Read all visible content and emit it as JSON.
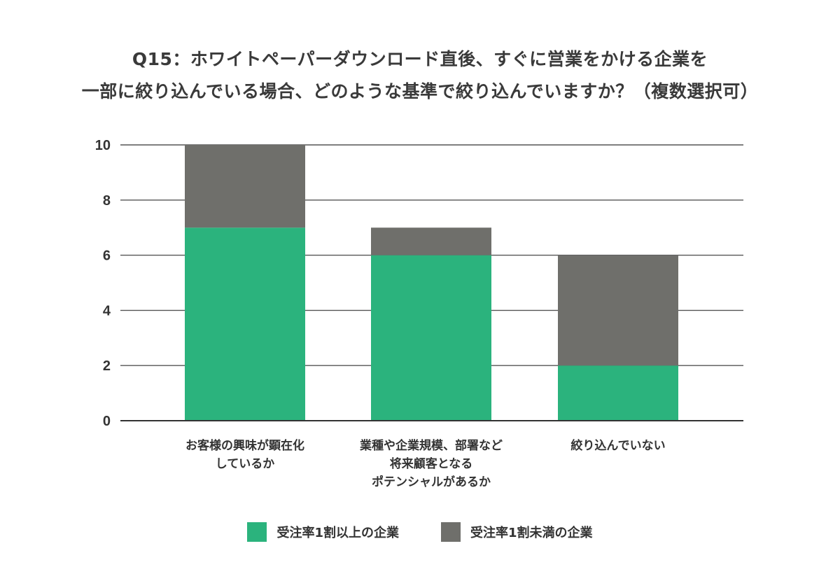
{
  "chart_data": {
    "type": "bar",
    "stacked": true,
    "title": [
      "Q15：ホワイトペーパーダウンロード直後、すぐに営業をかける企業を",
      "一部に絞り込んでいる場合、どのような基準で絞り込んでいますか？（複数選択可）"
    ],
    "categories": [
      [
        "お客様の興味が顕在化",
        "しているか"
      ],
      [
        "業種や企業規模、部署など",
        "将来顧客となる",
        "ポテンシャルがあるか"
      ],
      [
        "絞り込んでいない"
      ]
    ],
    "series": [
      {
        "name": "受注率1割以上の企業",
        "color": "#2bb37d",
        "values": [
          7,
          6,
          2
        ]
      },
      {
        "name": "受注率1割未満の企業",
        "color": "#6f6f6b",
        "values": [
          3,
          1,
          4
        ]
      }
    ],
    "ylim": [
      0,
      10
    ],
    "yticks": [
      0,
      2,
      4,
      6,
      8,
      10
    ],
    "grid": true,
    "legend_position": "bottom-center"
  }
}
